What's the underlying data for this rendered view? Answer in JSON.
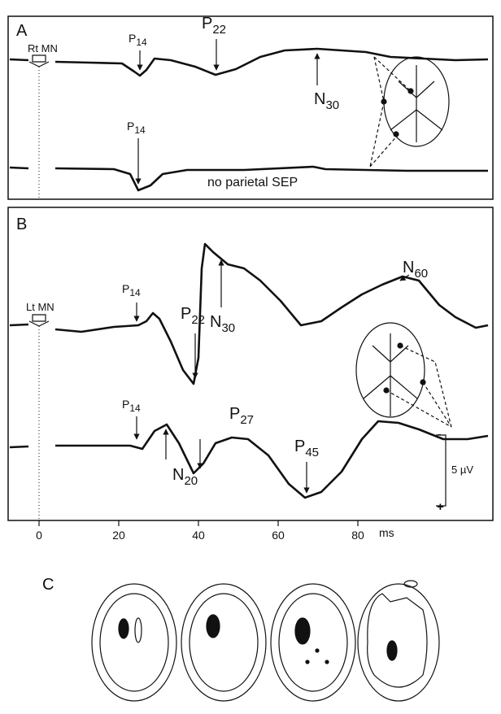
{
  "panels": [
    {
      "label": "A",
      "stimulus": "Rt MN",
      "labels": [
        {
          "main": "P",
          "sub": "14"
        },
        {
          "main": "P",
          "sub": "22"
        },
        {
          "main": "N",
          "sub": "30"
        },
        {
          "main": "P",
          "sub": "14"
        }
      ],
      "note": "no parietal SEP"
    },
    {
      "label": "B",
      "stimulus": "Lt MN",
      "labels": [
        {
          "main": "P",
          "sub": "14"
        },
        {
          "main": "P",
          "sub": "22"
        },
        {
          "main": "N",
          "sub": "30"
        },
        {
          "main": "N",
          "sub": "60"
        },
        {
          "main": "P",
          "sub": "14"
        },
        {
          "main": "N",
          "sub": "20"
        },
        {
          "main": "P",
          "sub": "27"
        },
        {
          "main": "P",
          "sub": "45"
        }
      ],
      "scale_bar": {
        "minus": "-",
        "label": "5 µV",
        "plus": "+"
      }
    },
    {
      "label": "C"
    }
  ],
  "x_axis": {
    "ticks": [
      "0",
      "20",
      "40",
      "60",
      "80"
    ],
    "unit": "ms"
  }
}
